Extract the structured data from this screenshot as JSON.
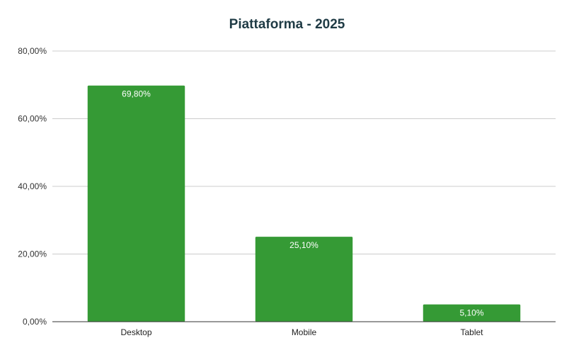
{
  "chart_data": {
    "type": "bar",
    "title": "Piattaforma - 2025",
    "categories": [
      "Desktop",
      "Mobile",
      "Tablet"
    ],
    "values": [
      69.8,
      25.1,
      5.1
    ],
    "data_labels": [
      "69,80%",
      "25,10%",
      "5,10%"
    ],
    "ylim": [
      0,
      80
    ],
    "yticks": [
      0,
      20,
      40,
      60,
      80
    ],
    "ytick_labels": [
      "0,00%",
      "20,00%",
      "40,00%",
      "60,00%",
      "80,00%"
    ],
    "grid": true,
    "bar_color": "#359a35",
    "xlabel": "",
    "ylabel": ""
  }
}
